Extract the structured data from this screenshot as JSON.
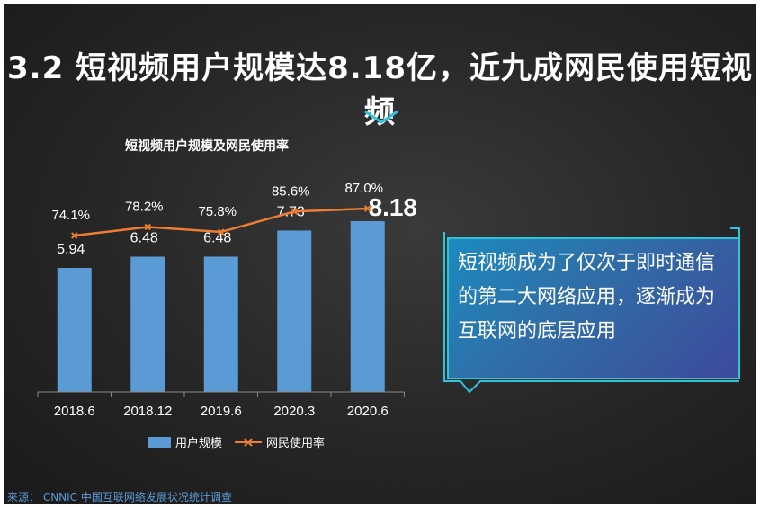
{
  "slide": {
    "title": "3.2 短视频用户规模达8.18亿，近九成网民使用短视频",
    "callout": "短视频成为了仅次于即时通信的第二大网络应用，逐渐成为互联网的底层应用",
    "source": "来源：  CNNIC 中国互联网络发展状况统计调查"
  },
  "colors": {
    "bar": "#5b9bd5",
    "line": "#ed7d31",
    "callout_border": "#2ec4d8",
    "text": "#ffffff"
  },
  "chart_data": {
    "type": "bar",
    "title": "短视频用户规模及网民使用率",
    "categories": [
      "2018.6",
      "2018.12",
      "2019.6",
      "2020.3",
      "2020.6"
    ],
    "series": [
      {
        "name": "用户规模",
        "type": "bar",
        "values": [
          5.94,
          6.48,
          6.48,
          7.73,
          8.18
        ],
        "labels": [
          "5.94",
          "6.48",
          "6.48",
          "7.73",
          "8.18"
        ]
      },
      {
        "name": "网民使用率",
        "type": "line",
        "values": [
          74.1,
          78.2,
          75.8,
          85.6,
          87.0
        ],
        "labels": [
          "74.1%",
          "78.2%",
          "75.8%",
          "85.6%",
          "87.0%"
        ]
      }
    ],
    "legend": "bottom",
    "grid": false
  }
}
